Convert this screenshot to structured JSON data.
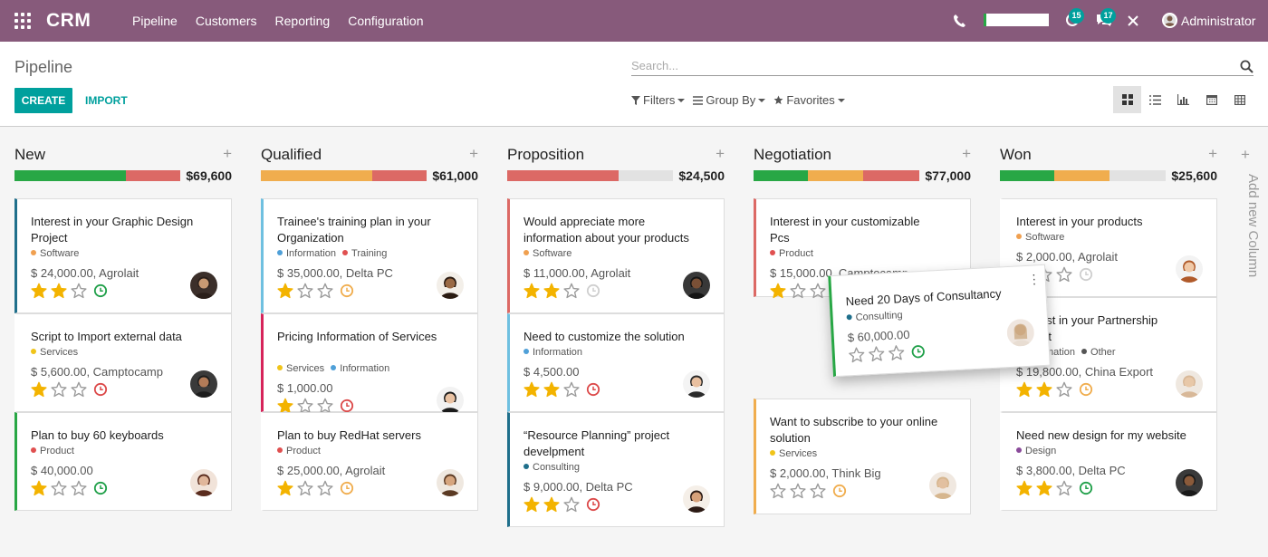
{
  "navbar": {
    "brand": "CRM",
    "menu": [
      "Pipeline",
      "Customers",
      "Reporting",
      "Configuration"
    ],
    "activity_count": "15",
    "message_count": "17",
    "user": "Administrator",
    "colors": {
      "bar": "#875a7b",
      "badge": "#00a09d"
    }
  },
  "control": {
    "breadcrumb": "Pipeline",
    "create_label": "CREATE",
    "import_label": "IMPORT",
    "search_placeholder": "Search...",
    "filters_label": "Filters",
    "groupby_label": "Group By",
    "favorites_label": "Favorites",
    "views": [
      "kanban-icon",
      "list-icon",
      "graph-icon",
      "calendar-icon",
      "pivot-icon"
    ],
    "active_view": "kanban"
  },
  "columns": [
    {
      "title": "New",
      "total": "$69,600",
      "progress": [
        {
          "color": "#28a745",
          "fraction": 0.67
        },
        {
          "color": "#dc6965",
          "fraction": 0.33
        }
      ],
      "cards": [
        {
          "title": "Interest in your Graphic Design Project",
          "tags": [
            {
              "label": "Software",
              "color": "#f0a050"
            }
          ],
          "amount": "$ 24,000.00, Agrolait",
          "stars": 2,
          "activity": "green",
          "border": "#1f6f8b"
        },
        {
          "title": "Script to Import external data",
          "tags": [
            {
              "label": "Services",
              "color": "#f0c419"
            }
          ],
          "amount": "$ 5,600.00, Camptocamp",
          "stars": 1,
          "activity": "red",
          "border": ""
        },
        {
          "title": "Plan to buy 60 keyboards",
          "tags": [
            {
              "label": "Product",
              "color": "#e05050"
            }
          ],
          "amount": "$ 40,000.00",
          "stars": 1,
          "activity": "green",
          "border": "#28a745"
        }
      ]
    },
    {
      "title": "Qualified",
      "total": "$61,000",
      "progress": [
        {
          "color": "#f0ad4e",
          "fraction": 0.67
        },
        {
          "color": "#dc6965",
          "fraction": 0.33
        }
      ],
      "cards": [
        {
          "title": "Trainee's training plan in your Organization",
          "tags": [
            {
              "label": "Information",
              "color": "#4fa0d8"
            },
            {
              "label": "Training",
              "color": "#e05050"
            }
          ],
          "amount": "$ 35,000.00, Delta PC",
          "stars": 1,
          "activity": "orange",
          "border": "#6fc0e0"
        },
        {
          "title": "Pricing Information of Services",
          "tags": [
            {
              "label": "Services",
              "color": "#f0c419"
            },
            {
              "label": "Information",
              "color": "#4fa0d8"
            }
          ],
          "amount": "$ 1,000.00",
          "stars": 1,
          "activity": "red",
          "border": "#d6245a"
        },
        {
          "title": "Plan to buy RedHat servers",
          "tags": [
            {
              "label": "Product",
              "color": "#e05050"
            }
          ],
          "amount": "$ 25,000.00, Agrolait",
          "stars": 1,
          "activity": "orange",
          "border": ""
        }
      ]
    },
    {
      "title": "Proposition",
      "total": "$24,500",
      "progress": [
        {
          "color": "#dc6965",
          "fraction": 0.67
        }
      ],
      "cards": [
        {
          "title": "Would appreciate more information about your products",
          "tags": [
            {
              "label": "Software",
              "color": "#f0a050"
            }
          ],
          "amount": "$ 11,000.00, Agrolait",
          "stars": 2,
          "activity": "grey",
          "border": "#dc6965"
        },
        {
          "title": "Need to customize the solution",
          "tags": [
            {
              "label": "Information",
              "color": "#4fa0d8"
            }
          ],
          "amount": "$ 4,500.00",
          "stars": 2,
          "activity": "red",
          "border": "#6fc0e0"
        },
        {
          "title": "“Resource Planning” project develpment",
          "tags": [
            {
              "label": "Consulting",
              "color": "#1f6f8b"
            }
          ],
          "amount": "$ 9,000.00, Delta PC",
          "stars": 2,
          "activity": "red",
          "border": "#1f6f8b"
        }
      ]
    },
    {
      "title": "Negotiation",
      "total": "$77,000",
      "progress": [
        {
          "color": "#28a745",
          "fraction": 0.33
        },
        {
          "color": "#f0ad4e",
          "fraction": 0.33
        },
        {
          "color": "#dc6965",
          "fraction": 0.34
        }
      ],
      "cards": [
        {
          "title": "Interest in your customizable Pcs",
          "tags": [
            {
              "label": "Product",
              "color": "#e05050"
            }
          ],
          "amount": "$ 15,000.00, Camptocamp",
          "stars": 1,
          "activity": "red",
          "border": "#dc6965"
        },
        {
          "title": "Want to subscribe to your online solution",
          "tags": [
            {
              "label": "Services",
              "color": "#f0c419"
            }
          ],
          "amount": "$ 2,000.00, Think Big",
          "stars": 0,
          "activity": "orange",
          "border": "#f0ad4e"
        }
      ]
    },
    {
      "title": "Won",
      "total": "$25,600",
      "progress": [
        {
          "color": "#28a745",
          "fraction": 0.33
        },
        {
          "color": "#f0ad4e",
          "fraction": 0.33
        }
      ],
      "cards": [
        {
          "title": "Interest in your products",
          "tags": [
            {
              "label": "Software",
              "color": "#f0a050"
            }
          ],
          "amount": "$ 2,000.00, Agrolait",
          "stars": 1,
          "activity": "grey",
          "border": ""
        },
        {
          "title": "Interest in your Partnership project",
          "tags": [
            {
              "label": "Information",
              "color": "#4fa0d8"
            },
            {
              "label": "Other",
              "color": "#555555"
            }
          ],
          "amount": "$ 19,800.00, China Export",
          "stars": 2,
          "activity": "orange",
          "border": ""
        },
        {
          "title": "Need new design for my website",
          "tags": [
            {
              "label": "Design",
              "color": "#8a4a9a"
            }
          ],
          "amount": "$ 3,800.00, Delta PC",
          "stars": 2,
          "activity": "green",
          "border": ""
        }
      ]
    }
  ],
  "add_column_label": "Add new Column",
  "dragged_card": {
    "title": "Need 20 Days of Consultancy",
    "tags": [
      {
        "label": "Consulting",
        "color": "#1f6f8b"
      }
    ],
    "amount": "$ 60,000.00",
    "stars": 0,
    "activity": "green"
  }
}
